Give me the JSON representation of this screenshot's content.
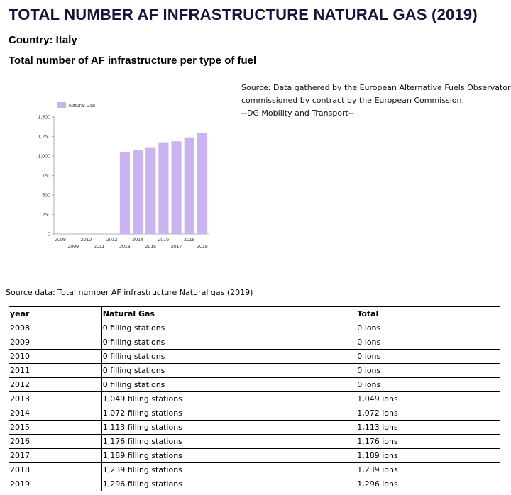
{
  "page": {
    "title": "TOTAL NUMBER AF INFRASTRUCTURE NATURAL GAS (2019)",
    "country": "Country: Italy",
    "subtitle": "Total number of AF infrastructure per type of fuel",
    "source_lines": [
      "Source: Data gathered by the European Alternative Fuels Observatory,",
      "commissioned by contract by the European Commission.",
      "--DG Mobility and Transport--"
    ],
    "table_caption": "Source data: Total number AF infrastructure Natural gas (2019)"
  },
  "chart_data": {
    "type": "bar",
    "categories": [
      "2008",
      "2009",
      "2010",
      "2011",
      "2012",
      "2013",
      "2014",
      "2015",
      "2016",
      "2017",
      "2018",
      "2019"
    ],
    "series": [
      {
        "name": "Natural Gas",
        "values": [
          0,
          0,
          0,
          0,
          0,
          1049,
          1072,
          1113,
          1176,
          1189,
          1239,
          1296
        ],
        "color": "#c9b3f0"
      }
    ],
    "yticks": [
      "0",
      "250",
      "500",
      "750",
      "1,000",
      "1,250",
      "1,500"
    ],
    "ylim": [
      0,
      1500
    ],
    "legend": "top-left",
    "grid": false
  },
  "table": {
    "headers": [
      "year",
      "Natural Gas",
      "Total"
    ],
    "rows": [
      [
        "2008",
        "0 filling stations",
        "0 ions"
      ],
      [
        "2009",
        "0 filling stations",
        "0 ions"
      ],
      [
        "2010",
        "0 filling stations",
        "0 ions"
      ],
      [
        "2011",
        "0 filling stations",
        "0 ions"
      ],
      [
        "2012",
        "0 filling stations",
        "0 ions"
      ],
      [
        "2013",
        "1,049 filling stations",
        "1,049 ions"
      ],
      [
        "2014",
        "1,072 filling stations",
        "1,072 ions"
      ],
      [
        "2015",
        "1,113 filling stations",
        "1,113 ions"
      ],
      [
        "2016",
        "1,176 filling stations",
        "1,176 ions"
      ],
      [
        "2017",
        "1,189 filling stations",
        "1,189 ions"
      ],
      [
        "2018",
        "1,239 filling stations",
        "1,239 ions"
      ],
      [
        "2019",
        "1,296 filling stations",
        "1,296 ions"
      ]
    ]
  }
}
